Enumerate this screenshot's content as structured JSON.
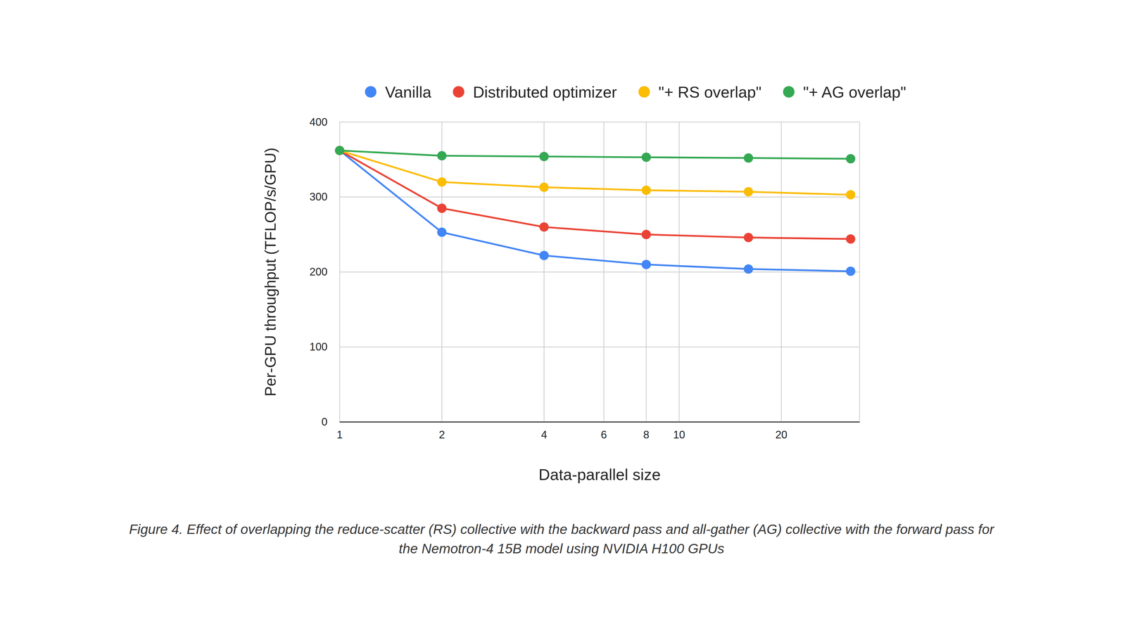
{
  "chart_data": {
    "type": "line",
    "x_label": "Data-parallel size",
    "y_label": "Per-GPU throughput (TFLOP/s/GPU)",
    "caption": "Figure 4. Effect of overlapping the reduce-scatter (RS) collective with the backward pass and all-gather (AG) collective with the forward pass for the Nemotron-4 15B model using NVIDIA H100 GPUs",
    "x": [
      1,
      2,
      4,
      8,
      16,
      32
    ],
    "series": [
      {
        "name": "Vanilla",
        "color": "#4285f4",
        "values": [
          362,
          253,
          222,
          210,
          204,
          201
        ]
      },
      {
        "name": "Distributed optimizer",
        "color": "#ea4335",
        "values": [
          362,
          285,
          260,
          250,
          246,
          244
        ]
      },
      {
        "name": "\"+ RS overlap\"",
        "color": "#fbbc04",
        "values": [
          362,
          320,
          313,
          309,
          307,
          303
        ]
      },
      {
        "name": "\"+ AG overlap\"",
        "color": "#34a853",
        "values": [
          362,
          355,
          354,
          353,
          352,
          351
        ]
      }
    ],
    "xlim": [
      1,
      34
    ],
    "xticks": [
      1,
      2,
      4,
      6,
      8,
      10,
      20
    ],
    "ylim": [
      0,
      400
    ],
    "yticks": [
      0,
      100,
      200,
      300,
      400
    ],
    "log": "x",
    "grid": true,
    "legend": "top",
    "marker": "circle"
  }
}
